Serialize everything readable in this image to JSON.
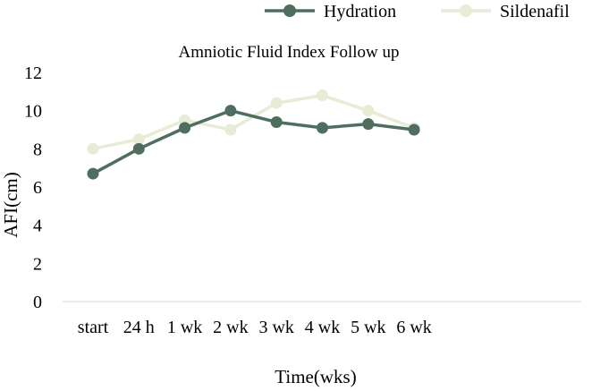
{
  "chart_data": {
    "type": "line",
    "title": "Amniotic Fluid Index Follow up",
    "xlabel": "Time(wks)",
    "ylabel": "AFI(cm)",
    "categories": [
      "start",
      "24 h",
      "1 wk",
      "2 wk",
      "3 wk",
      "4 wk",
      "5 wk",
      "6 wk"
    ],
    "ylim": [
      0,
      12
    ],
    "yticks": [
      0,
      2,
      4,
      6,
      8,
      10,
      12
    ],
    "grid": false,
    "legend": "top-right",
    "series": [
      {
        "name": "Hydration",
        "color": "#4f6e5f",
        "values": [
          6.7,
          8.0,
          9.1,
          10.0,
          9.4,
          9.1,
          9.3,
          9.0
        ]
      },
      {
        "name": "Sildenafil",
        "color": "#e6ecd6",
        "values": [
          8.0,
          8.5,
          9.5,
          9.0,
          10.4,
          10.8,
          10.0,
          9.1
        ]
      }
    ]
  }
}
